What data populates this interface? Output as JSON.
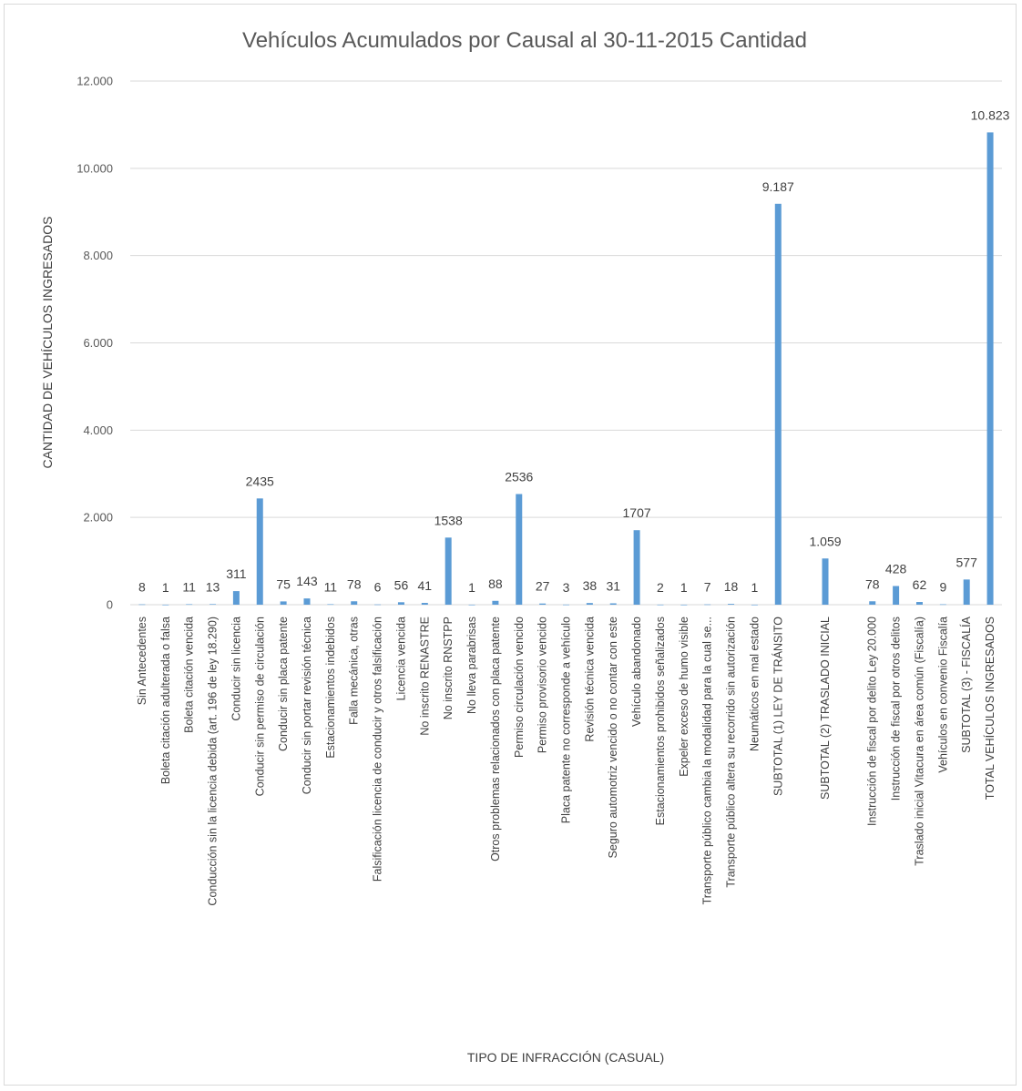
{
  "chart_data": {
    "type": "bar",
    "title": "Vehículos Acumulados por Causal al 30-11-2015 Cantidad",
    "xlabel": "TIPO DE INFRACCIÓN (CASUAL)",
    "ylabel": "CANTIDAD DE VEHÍCULOS INGRESADOS",
    "ylim": [
      0,
      12000
    ],
    "yticks": [
      0,
      2000,
      4000,
      6000,
      8000,
      10000,
      12000
    ],
    "ytick_labels": [
      "0",
      "2.000",
      "4.000",
      "6.000",
      "8.000",
      "10.000",
      "12.000"
    ],
    "grid": true,
    "bar_color": "#5b9bd5",
    "categories": [
      "Sin Antecedentes",
      "Boleta citación adulterada o falsa",
      "Boleta citación vencida",
      "Conducción sin la licencia debida (art. 196 de ley 18.290)",
      "Conducir sin licencia",
      "Conducir sin permiso de circulación",
      "Conducir sin placa patente",
      "Conducir sin portar revisión técnica",
      "Estacionamientos indebidos",
      "Falla mecánica, otras",
      "Falsificación licencia de conducir y otros falsificación",
      "Licencia vencida",
      "No inscrito RENASTRE",
      "No inscrito RNSTPP",
      "No lleva parabrisas",
      "Otros problemas relacionados con placa patente",
      "Permiso circulación vencido",
      "Permiso provisorio vencido",
      "Placa patente no corresponde a vehículo",
      "Revisión técnica vencida",
      "Seguro automotriz vencido o no contar con este",
      "Vehículo abandonado",
      "Estacionamientos prohibidos señalizados",
      "Expeler exceso de humo visible",
      "Transporte público cambia la modalidad para la cual se...",
      "Transporte público altera su recorrido sin autorización",
      "Neumáticos en mal estado",
      "SUBTOTAL (1)  LEY DE TRÁNSITO",
      "",
      "SUBTOTAL (2) TRASLADO INICIAL",
      "",
      "Instrucción de fiscal por delito Ley 20.000",
      "Instrucción de fiscal por otros delitos",
      "Traslado inicial Vitacura en área común (Fiscalía)",
      "Vehículos en convenio Fiscalía",
      "SUBTOTAL (3) - FISCALÍA",
      "TOTAL VEHÍCULOS INGRESADOS"
    ],
    "values": [
      8,
      1,
      11,
      13,
      311,
      2435,
      75,
      143,
      11,
      78,
      6,
      56,
      41,
      1538,
      1,
      88,
      2536,
      27,
      3,
      38,
      31,
      1707,
      2,
      1,
      7,
      18,
      1,
      9187,
      null,
      1059,
      null,
      78,
      428,
      62,
      9,
      577,
      10823
    ],
    "data_labels": [
      "8",
      "1",
      "11",
      "13",
      "311",
      "2435",
      "75",
      "143",
      "11",
      "78",
      "6",
      "56",
      "41",
      "1538",
      "1",
      "88",
      "2536",
      "27",
      "3",
      "38",
      "31",
      "1707",
      "2",
      "1",
      "7",
      "18",
      "1",
      "9.187",
      "",
      "1.059",
      "",
      "78",
      "428",
      "62",
      "9",
      "577",
      "10.823"
    ]
  }
}
